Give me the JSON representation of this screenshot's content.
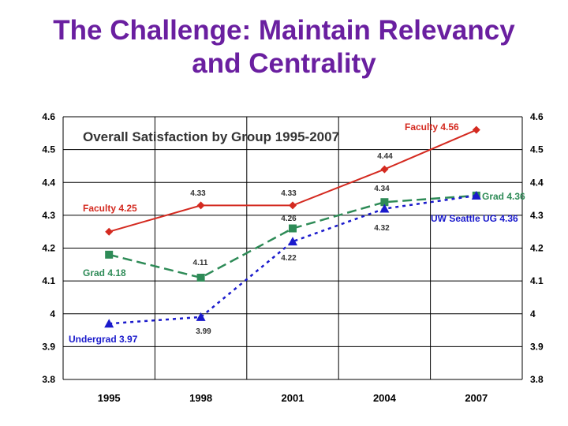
{
  "page_title_line1": "The Challenge:  Maintain Relevancy",
  "page_title_line2": "and Centrality",
  "chart_data": {
    "type": "line",
    "title": "Overall Satisfaction by Group 1995-2007",
    "categories": [
      "1995",
      "1998",
      "2001",
      "2004",
      "2007"
    ],
    "ylim": [
      3.8,
      4.6
    ],
    "yticks": [
      "4.6",
      "4.5",
      "4.4",
      "4.3",
      "4.2",
      "4.1",
      "4",
      "3.9",
      "3.8"
    ],
    "grid": true,
    "series": [
      {
        "key": "faculty",
        "color": "#d42a20",
        "values": [
          4.25,
          4.33,
          4.33,
          4.44,
          4.56
        ],
        "labels": [
          "Faculty 4.25",
          "4.33",
          "4.33",
          "4.44",
          "Faculty 4.56"
        ]
      },
      {
        "key": "grad",
        "color": "#2e8b57",
        "values": [
          4.18,
          4.11,
          4.26,
          4.34,
          4.36
        ],
        "labels": [
          "Grad  4.18",
          "4.11",
          "4.26",
          "4.34",
          "Grad 4.36"
        ]
      },
      {
        "key": "undergrad",
        "color": "#1a1acc",
        "values": [
          3.97,
          3.99,
          4.22,
          4.32,
          4.36
        ],
        "labels": [
          "Undergrad 3.97",
          "3.99",
          "4.22",
          "4.32",
          "UW Seattle UG 4.36"
        ]
      }
    ]
  }
}
